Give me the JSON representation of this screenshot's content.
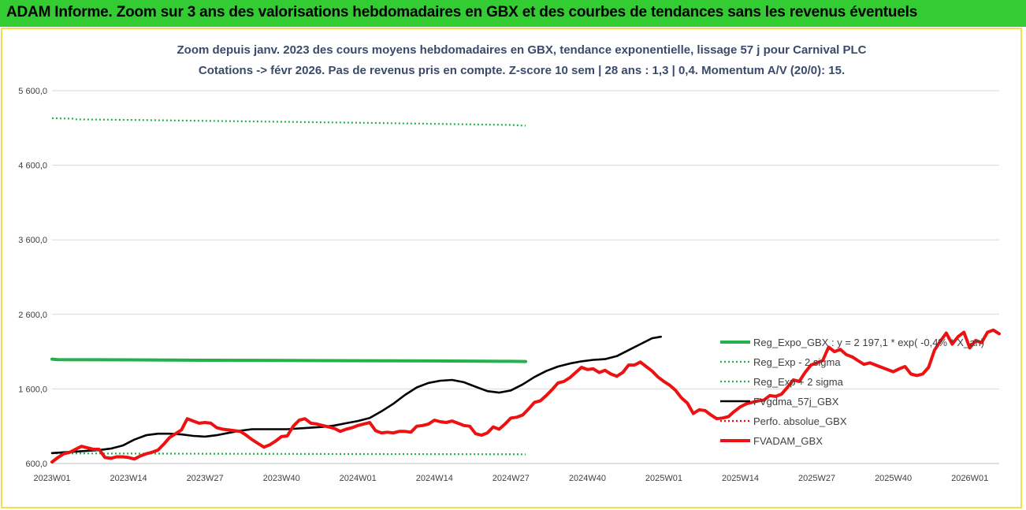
{
  "banner": {
    "title": "ADAM Informe. Zoom sur 3 ans des valorisations hebdomadaires en GBX et des courbes de tendances sans les revenus éventuels"
  },
  "chart_data": {
    "type": "line",
    "title": "Zoom depuis janv. 2023 des cours moyens hebdomadaires en GBX, tendance exponentielle, lissage 57 j pour Carnival PLC",
    "subtitle": "Cotations -> févr 2026. Pas de revenus pris en compte. Z-score 10 sem | 28 ans : 1,3 | 0,4. Momentum A/V (20/0): 15.",
    "xlabel": "",
    "ylabel": "",
    "ylim": [
      600,
      5600
    ],
    "yticks": [
      600,
      1600,
      2600,
      3600,
      4600,
      5600
    ],
    "ytick_labels": [
      "600,0",
      "1 600,0",
      "2 600,0",
      "3 600,0",
      "4 600,0",
      "5 600,0"
    ],
    "x_tick_labels": [
      "2023W01",
      "2023W14",
      "2023W27",
      "2023W40",
      "2024W01",
      "2024W14",
      "2024W27",
      "2024W40",
      "2025W01",
      "2025W14",
      "2025W27",
      "2025W40",
      "2026W01"
    ],
    "x_tick_step": 13,
    "grid": "horizontal",
    "legend_placement": "right",
    "series": [
      {
        "name": "Reg_Expo_GBX : y = 2 197,1 * exp( -0,4% * X_an)",
        "color": "#22b14c",
        "style": "solid-thick",
        "points": [
          [
            0,
            2000
          ],
          [
            2,
            1992
          ],
          [
            26,
            1990
          ],
          [
            52,
            1985
          ],
          [
            78,
            1982
          ],
          [
            104,
            1978
          ],
          [
            130,
            1975
          ],
          [
            156,
            1970
          ],
          [
            161,
            1968
          ]
        ]
      },
      {
        "name": "Reg_Exp - 2 sigma",
        "color": "#22b14c",
        "style": "dotted",
        "points": [
          [
            0,
            735
          ],
          [
            26,
            733
          ],
          [
            52,
            731
          ],
          [
            78,
            729
          ],
          [
            104,
            727
          ],
          [
            130,
            726
          ],
          [
            161,
            724
          ]
        ]
      },
      {
        "name": "Reg_Exp + 2 sigma",
        "color": "#22b14c",
        "style": "dotted",
        "points": [
          [
            0,
            5230
          ],
          [
            7,
            5225
          ],
          [
            8,
            5215
          ],
          [
            26,
            5208
          ],
          [
            52,
            5195
          ],
          [
            78,
            5182
          ],
          [
            104,
            5170
          ],
          [
            130,
            5155
          ],
          [
            156,
            5140
          ],
          [
            161,
            5130
          ]
        ]
      },
      {
        "name": "FVgdma_57j_GBX",
        "color": "#000000",
        "style": "solid",
        "points": [
          [
            0,
            740
          ],
          [
            4,
            750
          ],
          [
            8,
            760
          ],
          [
            12,
            770
          ],
          [
            16,
            780
          ],
          [
            20,
            800
          ],
          [
            24,
            840
          ],
          [
            28,
            920
          ],
          [
            32,
            980
          ],
          [
            36,
            1000
          ],
          [
            40,
            1000
          ],
          [
            44,
            990
          ],
          [
            48,
            970
          ],
          [
            52,
            960
          ],
          [
            56,
            980
          ],
          [
            60,
            1010
          ],
          [
            64,
            1040
          ],
          [
            68,
            1060
          ],
          [
            72,
            1060
          ],
          [
            76,
            1060
          ],
          [
            80,
            1060
          ],
          [
            84,
            1070
          ],
          [
            88,
            1080
          ],
          [
            92,
            1090
          ],
          [
            96,
            1110
          ],
          [
            100,
            1140
          ],
          [
            104,
            1170
          ],
          [
            108,
            1210
          ],
          [
            112,
            1300
          ],
          [
            116,
            1400
          ],
          [
            120,
            1520
          ],
          [
            124,
            1620
          ],
          [
            128,
            1680
          ],
          [
            132,
            1710
          ],
          [
            136,
            1720
          ],
          [
            140,
            1690
          ],
          [
            144,
            1630
          ],
          [
            148,
            1570
          ],
          [
            152,
            1550
          ],
          [
            156,
            1580
          ],
          [
            160,
            1660
          ],
          [
            164,
            1760
          ],
          [
            168,
            1840
          ],
          [
            172,
            1900
          ],
          [
            176,
            1940
          ],
          [
            180,
            1970
          ],
          [
            184,
            1990
          ],
          [
            188,
            2000
          ],
          [
            192,
            2040
          ],
          [
            196,
            2120
          ],
          [
            200,
            2200
          ],
          [
            204,
            2280
          ],
          [
            207,
            2300
          ]
        ]
      },
      {
        "name": "Perfo. absolue_GBX",
        "color": "#ff0000",
        "style": "dotted",
        "points": []
      },
      {
        "name": "FVADAM_GBX",
        "color": "#ee1111",
        "style": "solid-thick",
        "points": [
          [
            0,
            620
          ],
          [
            2,
            680
          ],
          [
            4,
            730
          ],
          [
            6,
            750
          ],
          [
            8,
            790
          ],
          [
            10,
            830
          ],
          [
            12,
            810
          ],
          [
            14,
            790
          ],
          [
            16,
            790
          ],
          [
            18,
            680
          ],
          [
            20,
            670
          ],
          [
            22,
            690
          ],
          [
            24,
            690
          ],
          [
            26,
            680
          ],
          [
            28,
            660
          ],
          [
            30,
            700
          ],
          [
            32,
            730
          ],
          [
            34,
            750
          ],
          [
            36,
            780
          ],
          [
            38,
            860
          ],
          [
            40,
            950
          ],
          [
            42,
            1000
          ],
          [
            44,
            1050
          ],
          [
            46,
            1200
          ],
          [
            48,
            1170
          ],
          [
            50,
            1140
          ],
          [
            52,
            1150
          ],
          [
            54,
            1140
          ],
          [
            56,
            1080
          ],
          [
            58,
            1060
          ],
          [
            60,
            1050
          ],
          [
            62,
            1040
          ],
          [
            64,
            1030
          ],
          [
            66,
            980
          ],
          [
            68,
            920
          ],
          [
            70,
            870
          ],
          [
            72,
            820
          ],
          [
            74,
            850
          ],
          [
            76,
            900
          ],
          [
            78,
            960
          ],
          [
            80,
            970
          ],
          [
            82,
            1100
          ],
          [
            84,
            1180
          ],
          [
            86,
            1200
          ],
          [
            88,
            1140
          ],
          [
            90,
            1130
          ],
          [
            92,
            1110
          ],
          [
            94,
            1090
          ],
          [
            96,
            1070
          ],
          [
            98,
            1030
          ],
          [
            100,
            1060
          ],
          [
            102,
            1080
          ],
          [
            104,
            1110
          ],
          [
            106,
            1130
          ],
          [
            108,
            1150
          ],
          [
            110,
            1040
          ],
          [
            112,
            1010
          ],
          [
            114,
            1020
          ],
          [
            116,
            1010
          ],
          [
            118,
            1030
          ],
          [
            120,
            1030
          ],
          [
            122,
            1020
          ],
          [
            124,
            1100
          ],
          [
            126,
            1110
          ],
          [
            128,
            1130
          ],
          [
            130,
            1180
          ],
          [
            132,
            1160
          ],
          [
            134,
            1150
          ],
          [
            136,
            1170
          ],
          [
            138,
            1140
          ],
          [
            140,
            1110
          ],
          [
            142,
            1100
          ],
          [
            144,
            1000
          ],
          [
            146,
            980
          ],
          [
            148,
            1010
          ],
          [
            150,
            1090
          ],
          [
            152,
            1060
          ],
          [
            154,
            1130
          ],
          [
            156,
            1210
          ],
          [
            158,
            1220
          ],
          [
            160,
            1250
          ],
          [
            162,
            1330
          ],
          [
            164,
            1420
          ],
          [
            166,
            1440
          ],
          [
            168,
            1510
          ],
          [
            170,
            1590
          ],
          [
            172,
            1680
          ],
          [
            174,
            1700
          ],
          [
            176,
            1750
          ],
          [
            178,
            1820
          ],
          [
            180,
            1890
          ],
          [
            182,
            1860
          ],
          [
            184,
            1870
          ],
          [
            186,
            1820
          ],
          [
            188,
            1850
          ],
          [
            190,
            1800
          ],
          [
            192,
            1770
          ],
          [
            194,
            1820
          ],
          [
            196,
            1920
          ],
          [
            198,
            1920
          ],
          [
            200,
            1960
          ],
          [
            202,
            1900
          ],
          [
            204,
            1840
          ],
          [
            206,
            1760
          ],
          [
            208,
            1700
          ],
          [
            210,
            1650
          ],
          [
            212,
            1580
          ],
          [
            214,
            1480
          ],
          [
            216,
            1410
          ],
          [
            218,
            1270
          ],
          [
            220,
            1320
          ],
          [
            222,
            1310
          ],
          [
            224,
            1250
          ],
          [
            226,
            1200
          ],
          [
            228,
            1210
          ],
          [
            230,
            1230
          ],
          [
            232,
            1300
          ],
          [
            234,
            1360
          ],
          [
            236,
            1400
          ],
          [
            238,
            1420
          ],
          [
            240,
            1440
          ],
          [
            242,
            1450
          ],
          [
            244,
            1510
          ],
          [
            246,
            1500
          ],
          [
            248,
            1530
          ],
          [
            250,
            1620
          ],
          [
            252,
            1720
          ],
          [
            254,
            1700
          ],
          [
            256,
            1820
          ],
          [
            258,
            1920
          ],
          [
            260,
            1950
          ],
          [
            262,
            1980
          ],
          [
            264,
            2160
          ],
          [
            266,
            2100
          ],
          [
            268,
            2130
          ],
          [
            270,
            2060
          ],
          [
            272,
            2030
          ],
          [
            274,
            1980
          ],
          [
            276,
            1930
          ],
          [
            278,
            1950
          ],
          [
            280,
            1920
          ],
          [
            282,
            1890
          ],
          [
            284,
            1860
          ],
          [
            286,
            1830
          ],
          [
            288,
            1870
          ],
          [
            290,
            1900
          ],
          [
            292,
            1800
          ],
          [
            294,
            1780
          ],
          [
            296,
            1800
          ],
          [
            298,
            1890
          ],
          [
            300,
            2120
          ],
          [
            302,
            2240
          ],
          [
            304,
            2350
          ],
          [
            306,
            2200
          ],
          [
            308,
            2300
          ],
          [
            310,
            2360
          ],
          [
            312,
            2150
          ],
          [
            314,
            2250
          ],
          [
            316,
            2220
          ],
          [
            318,
            2360
          ],
          [
            320,
            2390
          ],
          [
            322,
            2340
          ]
        ]
      }
    ]
  }
}
